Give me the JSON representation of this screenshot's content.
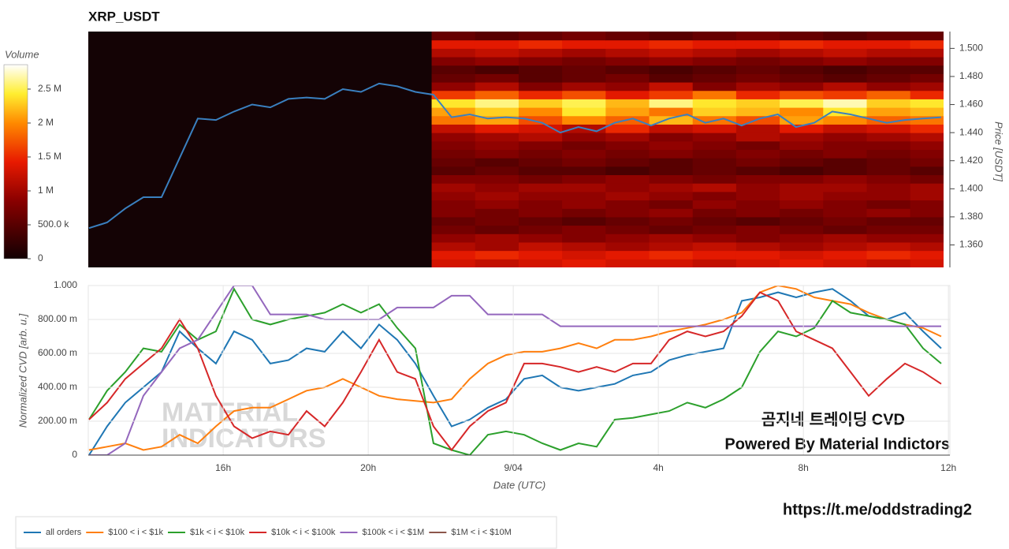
{
  "chart_data": [
    {
      "type": "heatmap",
      "title": "XRP_USDT",
      "y_label": "Price [USDT]",
      "colorbar_title": "Volume",
      "colorscale": [
        [
          0,
          "#120002"
        ],
        [
          0.3,
          "#8a0000"
        ],
        [
          0.5,
          "#e81a00"
        ],
        [
          0.7,
          "#ff8a00"
        ],
        [
          0.85,
          "#ffee30"
        ],
        [
          1,
          "#ffffff"
        ]
      ],
      "plot_bgcolor": "#140305",
      "clim": [
        0,
        2860000
      ],
      "cticks": [
        0,
        {
          "value": 500000,
          "label": "500.0 k"
        },
        {
          "value": 1000000,
          "label": "1 M"
        },
        {
          "value": 1500000,
          "label": "1.5 M"
        },
        {
          "value": 2000000,
          "label": "2 M"
        },
        {
          "value": 2500000,
          "label": "2.5 M"
        }
      ],
      "xlim": [
        12.28,
        35.87
      ],
      "ylim": [
        1.344,
        1.512
      ],
      "yticks": [
        {
          "value": 1.36,
          "label": "1.360"
        },
        {
          "value": 1.38,
          "label": "1.380"
        },
        {
          "value": 1.4,
          "label": "1.400"
        },
        {
          "value": 1.42,
          "label": "1.420"
        },
        {
          "value": 1.44,
          "label": "1.440"
        },
        {
          "value": 1.46,
          "label": "1.460"
        },
        {
          "value": 1.48,
          "label": "1.480"
        },
        {
          "value": 1.5,
          "label": "1.500"
        }
      ],
      "x_bins": [
        21.75,
        22.95,
        24.15,
        25.35,
        26.55,
        27.75,
        28.95,
        30.15,
        31.35,
        32.55,
        33.75,
        34.95,
        36.15
      ],
      "y_bins": [
        1.344,
        1.35,
        1.356,
        1.362,
        1.368,
        1.374,
        1.38,
        1.386,
        1.392,
        1.398,
        1.404,
        1.41,
        1.416,
        1.422,
        1.428,
        1.434,
        1.44,
        1.446,
        1.452,
        1.458,
        1.464,
        1.47,
        1.476,
        1.482,
        1.488,
        1.494,
        1.5,
        1.506,
        1.512
      ],
      "z": [
        [
          1300000,
          1200000,
          1300000,
          1400000,
          1300000,
          1300000,
          1200000,
          1300000,
          1400000,
          1300000,
          1200000,
          1300000
        ],
        [
          1400000,
          1500000,
          1400000,
          1300000,
          1400000,
          1500000,
          1400000,
          1400000,
          1300000,
          1400000,
          1500000,
          1400000
        ],
        [
          1100000,
          1000000,
          1200000,
          1100000,
          1000000,
          1100000,
          1200000,
          1100000,
          1000000,
          1100000,
          1200000,
          1100000
        ],
        [
          900000,
          1000000,
          900000,
          800000,
          900000,
          1000000,
          900000,
          800000,
          900000,
          1000000,
          900000,
          900000
        ],
        [
          700000,
          600000,
          700000,
          800000,
          700000,
          600000,
          700000,
          800000,
          700000,
          600000,
          700000,
          700000
        ],
        [
          600000,
          700000,
          600000,
          500000,
          600000,
          700000,
          600000,
          500000,
          600000,
          700000,
          600000,
          600000
        ],
        [
          800000,
          700000,
          800000,
          700000,
          800000,
          900000,
          700000,
          800000,
          700000,
          800000,
          900000,
          800000
        ],
        [
          800000,
          900000,
          800000,
          900000,
          800000,
          700000,
          900000,
          800000,
          900000,
          800000,
          700000,
          800000
        ],
        [
          900000,
          1000000,
          900000,
          900000,
          1000000,
          900000,
          800000,
          900000,
          1000000,
          900000,
          900000,
          1000000
        ],
        [
          1000000,
          900000,
          1000000,
          1000000,
          900000,
          1000000,
          1100000,
          900000,
          1000000,
          1000000,
          900000,
          1000000
        ],
        [
          800000,
          800000,
          700000,
          800000,
          900000,
          800000,
          700000,
          800000,
          800000,
          900000,
          800000,
          700000
        ],
        [
          500000,
          600000,
          500000,
          500000,
          400000,
          500000,
          600000,
          500000,
          400000,
          500000,
          600000,
          500000
        ],
        [
          600000,
          500000,
          600000,
          700000,
          600000,
          500000,
          600000,
          700000,
          600000,
          500000,
          600000,
          700000
        ],
        [
          700000,
          800000,
          700000,
          800000,
          700000,
          800000,
          700000,
          800000,
          700000,
          800000,
          700000,
          800000
        ],
        [
          800000,
          900000,
          800000,
          700000,
          800000,
          900000,
          800000,
          700000,
          900000,
          800000,
          800000,
          900000
        ],
        [
          900000,
          1000000,
          1100000,
          900000,
          1000000,
          800000,
          900000,
          1100000,
          1000000,
          900000,
          1000000,
          1100000
        ],
        [
          1200000,
          1400000,
          1300000,
          1100000,
          1500000,
          1200000,
          1300000,
          1100000,
          1400000,
          1200000,
          1300000,
          1500000
        ],
        [
          1900000,
          2100000,
          1700000,
          2000000,
          1800000,
          2200000,
          1900000,
          1700000,
          2100000,
          2000000,
          1800000,
          1900000
        ],
        [
          2100000,
          2300000,
          2000000,
          2400000,
          2100000,
          1900000,
          2300000,
          2200000,
          2000000,
          2400000,
          2100000,
          2200000
        ],
        [
          2400000,
          2600000,
          2300000,
          2500000,
          2200000,
          2600000,
          2400000,
          2300000,
          2500000,
          2700000,
          2300000,
          2400000
        ],
        [
          1600000,
          1800000,
          1500000,
          1700000,
          1400000,
          1600000,
          1900000,
          1500000,
          1700000,
          1600000,
          1800000,
          1500000
        ],
        [
          900000,
          1100000,
          800000,
          1000000,
          900000,
          1200000,
          800000,
          1000000,
          900000,
          1100000,
          900000,
          1000000
        ],
        [
          600000,
          700000,
          500000,
          600000,
          700000,
          500000,
          600000,
          700000,
          600000,
          500000,
          600000,
          700000
        ],
        [
          500000,
          400000,
          500000,
          600000,
          500000,
          400000,
          500000,
          600000,
          500000,
          400000,
          500000,
          500000
        ],
        [
          800000,
          900000,
          800000,
          700000,
          800000,
          900000,
          800000,
          700000,
          800000,
          900000,
          800000,
          800000
        ],
        [
          1100000,
          1200000,
          1100000,
          1000000,
          1100000,
          1200000,
          1100000,
          1000000,
          1100000,
          1200000,
          1100000,
          1100000
        ],
        [
          1400000,
          1400000,
          1500000,
          1400000,
          1400000,
          1500000,
          1400000,
          1400000,
          1500000,
          1400000,
          1400000,
          1500000
        ],
        [
          600000,
          500000,
          600000,
          700000,
          600000,
          500000,
          600000,
          700000,
          600000,
          500000,
          600000,
          600000
        ]
      ],
      "x": [
        12.3,
        12.8,
        13.3,
        13.8,
        14.3,
        14.8,
        15.3,
        15.8,
        16.3,
        16.8,
        17.3,
        17.8,
        18.3,
        18.8,
        19.3,
        19.8,
        20.3,
        20.8,
        21.3,
        21.8,
        22.3,
        22.8,
        23.3,
        23.8,
        24.3,
        24.8,
        25.3,
        25.8,
        26.3,
        26.8,
        27.3,
        27.8,
        28.3,
        28.8,
        29.3,
        29.8,
        30.3,
        30.8,
        31.3,
        31.8,
        32.3,
        32.8,
        33.3,
        33.8,
        34.3,
        34.8,
        35.3,
        35.8
      ],
      "series": [
        {
          "color": "#3a80c0",
          "values": [
            1.372,
            1.376,
            1.386,
            1.394,
            1.394,
            1.422,
            1.45,
            1.449,
            1.455,
            1.46,
            1.458,
            1.464,
            1.465,
            1.464,
            1.471,
            1.469,
            1.475,
            1.473,
            1.469,
            1.467,
            1.451,
            1.453,
            1.45,
            1.451,
            1.45,
            1.447,
            1.44,
            1.444,
            1.441,
            1.447,
            1.45,
            1.445,
            1.45,
            1.453,
            1.447,
            1.45,
            1.445,
            1.45,
            1.453,
            1.444,
            1.447,
            1.455,
            1.453,
            1.45,
            1.447,
            1.449,
            1.45,
            1.451
          ]
        }
      ]
    },
    {
      "type": "line",
      "y_label": "Normalized CVD [arb. u.]",
      "x_label": "Date (UTC)",
      "xlim": [
        12.28,
        36.04
      ],
      "ylim": [
        0,
        1
      ],
      "xticks": [
        {
          "value": 16,
          "label": "16h"
        },
        {
          "value": 20,
          "label": "20h"
        },
        {
          "value": 24,
          "label": "9/04"
        },
        {
          "value": 28,
          "label": "4h"
        },
        {
          "value": 32,
          "label": "8h"
        },
        {
          "value": 36,
          "label": "12h"
        }
      ],
      "yticks": [
        0,
        {
          "value": 0.2,
          "label": "200.00 m"
        },
        {
          "value": 0.4,
          "label": "400.00 m"
        },
        {
          "value": 0.6,
          "label": "600.00 m"
        },
        {
          "value": 0.8,
          "label": "800.00 m"
        },
        {
          "value": 1,
          "label": "1.000"
        }
      ],
      "grid": true,
      "watermark": [
        "MATERIAL",
        "INDICATORS"
      ],
      "annotations": [
        "곰지네 트레이딩 CVD",
        "Powered By Material Indictors"
      ],
      "x": [
        12.3,
        12.8,
        13.3,
        13.8,
        14.3,
        14.8,
        15.3,
        15.8,
        16.3,
        16.8,
        17.3,
        17.8,
        18.3,
        18.8,
        19.3,
        19.8,
        20.3,
        20.8,
        21.3,
        21.8,
        22.3,
        22.8,
        23.3,
        23.8,
        24.3,
        24.8,
        25.3,
        25.8,
        26.3,
        26.8,
        27.3,
        27.8,
        28.3,
        28.8,
        29.3,
        29.8,
        30.3,
        30.8,
        31.3,
        31.8,
        32.3,
        32.8,
        33.3,
        33.8,
        34.3,
        34.8,
        35.3,
        35.8
      ],
      "series": [
        {
          "name": "all orders",
          "color": "#1f77b4",
          "values": [
            0,
            0.17,
            0.31,
            0.4,
            0.49,
            0.73,
            0.63,
            0.54,
            0.73,
            0.68,
            0.54,
            0.56,
            0.63,
            0.61,
            0.73,
            0.63,
            0.77,
            0.68,
            0.54,
            0.35,
            0.17,
            0.21,
            0.28,
            0.33,
            0.45,
            0.47,
            0.4,
            0.38,
            0.4,
            0.42,
            0.47,
            0.49,
            0.56,
            0.59,
            0.61,
            0.63,
            0.91,
            0.93,
            0.96,
            0.93,
            0.96,
            0.98,
            0.91,
            0.82,
            0.8,
            0.84,
            0.73,
            0.63
          ]
        },
        {
          "name": "$100 < i < $1k",
          "color": "#ff7f0e",
          "values": [
            0.03,
            0.05,
            0.07,
            0.03,
            0.05,
            0.12,
            0.07,
            0.17,
            0.26,
            0.28,
            0.28,
            0.33,
            0.38,
            0.4,
            0.45,
            0.4,
            0.35,
            0.33,
            0.32,
            0.31,
            0.33,
            0.45,
            0.54,
            0.59,
            0.61,
            0.61,
            0.63,
            0.66,
            0.63,
            0.68,
            0.68,
            0.7,
            0.73,
            0.75,
            0.77,
            0.8,
            0.84,
            0.96,
            1,
            0.98,
            0.93,
            0.91,
            0.89,
            0.84,
            0.8,
            0.77,
            0.75,
            0.7
          ]
        },
        {
          "name": "$1k < i < $10k",
          "color": "#2ca02c",
          "values": [
            0.21,
            0.38,
            0.49,
            0.63,
            0.61,
            0.77,
            0.68,
            0.73,
            0.98,
            0.8,
            0.77,
            0.8,
            0.82,
            0.84,
            0.89,
            0.84,
            0.89,
            0.75,
            0.63,
            0.07,
            0.03,
            0,
            0.12,
            0.14,
            0.12,
            0.07,
            0.03,
            0.07,
            0.05,
            0.21,
            0.22,
            0.24,
            0.26,
            0.31,
            0.28,
            0.33,
            0.4,
            0.61,
            0.73,
            0.7,
            0.75,
            0.91,
            0.84,
            0.82,
            0.8,
            0.77,
            0.63,
            0.54
          ]
        },
        {
          "name": "$10k < i < $100k",
          "color": "#d62728",
          "values": [
            0.21,
            0.31,
            0.45,
            0.54,
            0.63,
            0.8,
            0.63,
            0.35,
            0.17,
            0.1,
            0.14,
            0.12,
            0.26,
            0.17,
            0.31,
            0.49,
            0.68,
            0.49,
            0.45,
            0.17,
            0.03,
            0.17,
            0.26,
            0.31,
            0.54,
            0.54,
            0.52,
            0.49,
            0.52,
            0.49,
            0.54,
            0.54,
            0.68,
            0.73,
            0.7,
            0.73,
            0.82,
            0.96,
            0.91,
            0.73,
            0.68,
            0.63,
            0.49,
            0.35,
            0.45,
            0.54,
            0.49,
            0.42
          ]
        },
        {
          "name": "$100k < i < $1M",
          "color": "#9467bd",
          "values": [
            0,
            0,
            0.07,
            0.35,
            0.49,
            0.63,
            0.68,
            0.84,
            1,
            1,
            0.83,
            0.83,
            0.83,
            0.8,
            0.8,
            0.8,
            0.8,
            0.87,
            0.87,
            0.87,
            0.94,
            0.94,
            0.83,
            0.83,
            0.83,
            0.83,
            0.76,
            0.76,
            0.76,
            0.76,
            0.76,
            0.76,
            0.76,
            0.76,
            0.76,
            0.76,
            0.76,
            0.76,
            0.76,
            0.76,
            0.76,
            0.76,
            0.76,
            0.76,
            0.76,
            0.76,
            0.76,
            0.76
          ]
        },
        {
          "name": "$1M < i < $10M",
          "color": "#8c564b",
          "values": [
            null,
            null,
            null,
            null,
            null,
            null,
            null,
            null,
            null,
            null,
            null,
            null,
            null,
            null,
            null,
            null,
            null,
            null,
            null,
            null,
            null,
            null,
            null,
            null,
            null,
            null,
            null,
            null,
            null,
            null,
            null,
            null,
            null,
            null,
            null,
            null,
            null,
            null,
            null,
            null,
            null,
            null,
            null,
            null,
            null,
            null,
            null,
            null
          ]
        }
      ]
    }
  ],
  "link": "https://t.me/oddstrading2"
}
